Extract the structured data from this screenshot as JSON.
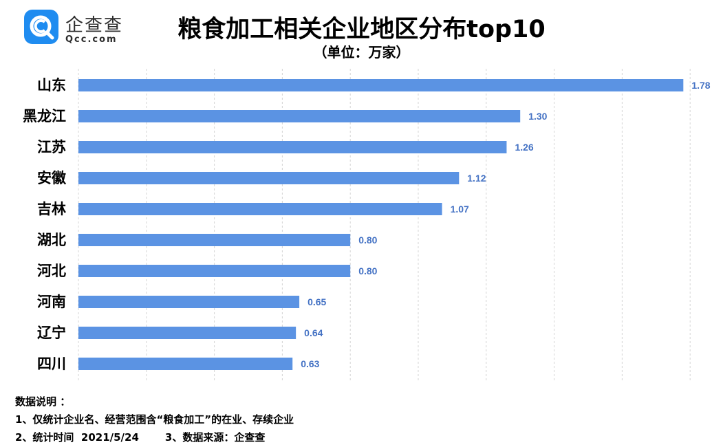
{
  "logo": {
    "name": "企查查",
    "domain": "Qcc.com",
    "icon": "qcc-magnifier-icon",
    "color": "#1f8cf0"
  },
  "title": "粮食加工相关企业地区分布top10",
  "subtitle": "（单位：万家）",
  "chart_data": {
    "type": "bar",
    "orientation": "horizontal",
    "categories": [
      "山东",
      "黑龙江",
      "江苏",
      "安徽",
      "吉林",
      "湖北",
      "河北",
      "河南",
      "辽宁",
      "四川"
    ],
    "values": [
      1.78,
      1.3,
      1.26,
      1.12,
      1.07,
      0.8,
      0.8,
      0.65,
      0.64,
      0.63
    ],
    "value_labels": [
      "1.78",
      "1.30",
      "1.26",
      "1.12",
      "1.07",
      "0.80",
      "0.80",
      "0.65",
      "0.64",
      "0.63"
    ],
    "xlim": [
      0,
      1.8
    ],
    "grid": "vertical dashed",
    "bar_color": "#5b93e3",
    "label_color": "#4472c4"
  },
  "notes": {
    "heading": "数据说明 ：",
    "line1": "1、仅统计企业名、经营范围含“粮食加工”的在业、存续企业",
    "line2a": "2、统计时间  2021/5/24",
    "line2b": "3、数据来源：企查查"
  }
}
